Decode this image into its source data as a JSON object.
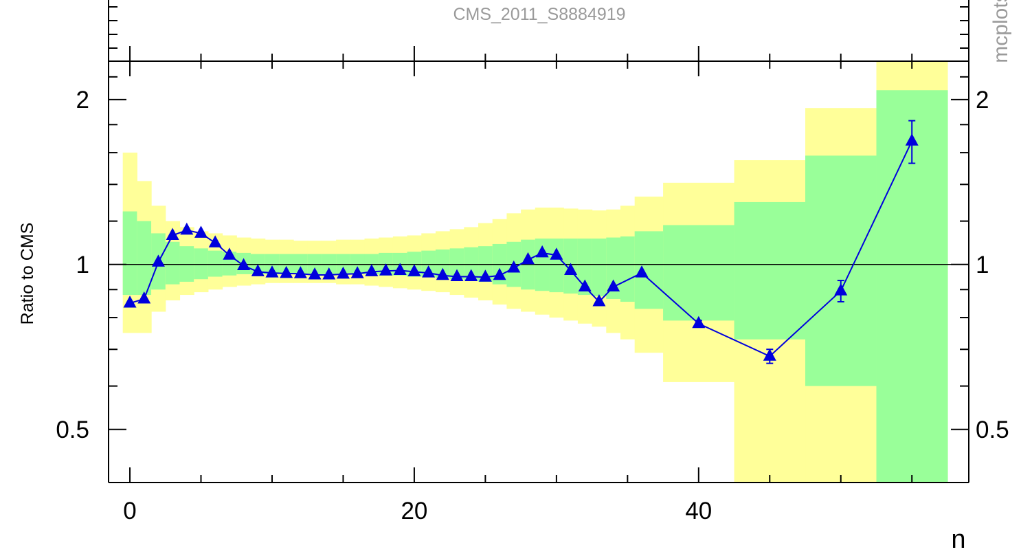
{
  "chart_data": {
    "type": "line",
    "title": "CMS_2011_S8884919",
    "side_label": "mcplots",
    "xlabel": "n",
    "ylabel": "Ratio to CMS",
    "x_ticks": [
      "0",
      "20",
      "40"
    ],
    "y_ticks": [
      "0.5",
      "1",
      "2"
    ],
    "xlim": [
      -1.5,
      59
    ],
    "ylim": [
      0.4,
      2.35
    ],
    "y_scale": "log",
    "reference_line": 1,
    "colors": {
      "band_outer": "#ffff99",
      "band_inner": "#99ff99",
      "series": "#0000dd",
      "axis": "#000000",
      "text_muted": "#9a9a9a"
    },
    "bands": [
      {
        "x0": -0.5,
        "x1": 0.5,
        "outer": [
          0.75,
          1.6
        ],
        "inner": [
          0.88,
          1.25
        ]
      },
      {
        "x0": 0.5,
        "x1": 1.5,
        "outer": [
          0.75,
          1.42
        ],
        "inner": [
          0.88,
          1.2
        ]
      },
      {
        "x0": 1.5,
        "x1": 2.5,
        "outer": [
          0.82,
          1.28
        ],
        "inner": [
          0.9,
          1.14
        ]
      },
      {
        "x0": 2.5,
        "x1": 3.5,
        "outer": [
          0.86,
          1.2
        ],
        "inner": [
          0.92,
          1.1
        ]
      },
      {
        "x0": 3.5,
        "x1": 4.5,
        "outer": [
          0.88,
          1.17
        ],
        "inner": [
          0.93,
          1.08
        ]
      },
      {
        "x0": 4.5,
        "x1": 5.5,
        "outer": [
          0.89,
          1.15
        ],
        "inner": [
          0.94,
          1.07
        ]
      },
      {
        "x0": 5.5,
        "x1": 6.5,
        "outer": [
          0.9,
          1.14
        ],
        "inner": [
          0.95,
          1.06
        ]
      },
      {
        "x0": 6.5,
        "x1": 7.5,
        "outer": [
          0.91,
          1.13
        ],
        "inner": [
          0.955,
          1.055
        ]
      },
      {
        "x0": 7.5,
        "x1": 8.5,
        "outer": [
          0.915,
          1.12
        ],
        "inner": [
          0.96,
          1.05
        ]
      },
      {
        "x0": 8.5,
        "x1": 9.5,
        "outer": [
          0.92,
          1.115
        ],
        "inner": [
          0.96,
          1.045
        ]
      },
      {
        "x0": 9.5,
        "x1": 10.5,
        "outer": [
          0.925,
          1.11
        ],
        "inner": [
          0.96,
          1.045
        ]
      },
      {
        "x0": 10.5,
        "x1": 11.5,
        "outer": [
          0.925,
          1.11
        ],
        "inner": [
          0.96,
          1.045
        ]
      },
      {
        "x0": 11.5,
        "x1": 12.5,
        "outer": [
          0.925,
          1.105
        ],
        "inner": [
          0.96,
          1.045
        ]
      },
      {
        "x0": 12.5,
        "x1": 13.5,
        "outer": [
          0.925,
          1.105
        ],
        "inner": [
          0.96,
          1.045
        ]
      },
      {
        "x0": 13.5,
        "x1": 14.5,
        "outer": [
          0.925,
          1.105
        ],
        "inner": [
          0.96,
          1.045
        ]
      },
      {
        "x0": 14.5,
        "x1": 15.5,
        "outer": [
          0.92,
          1.11
        ],
        "inner": [
          0.96,
          1.045
        ]
      },
      {
        "x0": 15.5,
        "x1": 16.5,
        "outer": [
          0.92,
          1.11
        ],
        "inner": [
          0.96,
          1.045
        ]
      },
      {
        "x0": 16.5,
        "x1": 17.5,
        "outer": [
          0.915,
          1.115
        ],
        "inner": [
          0.96,
          1.045
        ]
      },
      {
        "x0": 17.5,
        "x1": 18.5,
        "outer": [
          0.91,
          1.12
        ],
        "inner": [
          0.955,
          1.05
        ]
      },
      {
        "x0": 18.5,
        "x1": 19.5,
        "outer": [
          0.905,
          1.125
        ],
        "inner": [
          0.955,
          1.05
        ]
      },
      {
        "x0": 19.5,
        "x1": 20.5,
        "outer": [
          0.9,
          1.13
        ],
        "inner": [
          0.95,
          1.055
        ]
      },
      {
        "x0": 20.5,
        "x1": 21.5,
        "outer": [
          0.895,
          1.14
        ],
        "inner": [
          0.95,
          1.06
        ]
      },
      {
        "x0": 21.5,
        "x1": 22.5,
        "outer": [
          0.89,
          1.15
        ],
        "inner": [
          0.945,
          1.065
        ]
      },
      {
        "x0": 22.5,
        "x1": 23.5,
        "outer": [
          0.88,
          1.16
        ],
        "inner": [
          0.94,
          1.07
        ]
      },
      {
        "x0": 23.5,
        "x1": 24.5,
        "outer": [
          0.87,
          1.17
        ],
        "inner": [
          0.935,
          1.075
        ]
      },
      {
        "x0": 24.5,
        "x1": 25.5,
        "outer": [
          0.86,
          1.19
        ],
        "inner": [
          0.93,
          1.08
        ]
      },
      {
        "x0": 25.5,
        "x1": 26.5,
        "outer": [
          0.845,
          1.21
        ],
        "inner": [
          0.92,
          1.09
        ]
      },
      {
        "x0": 26.5,
        "x1": 27.5,
        "outer": [
          0.83,
          1.24
        ],
        "inner": [
          0.91,
          1.1
        ]
      },
      {
        "x0": 27.5,
        "x1": 28.5,
        "outer": [
          0.82,
          1.26
        ],
        "inner": [
          0.9,
          1.11
        ]
      },
      {
        "x0": 28.5,
        "x1": 29.5,
        "outer": [
          0.81,
          1.27
        ],
        "inner": [
          0.895,
          1.115
        ]
      },
      {
        "x0": 29.5,
        "x1": 30.5,
        "outer": [
          0.8,
          1.27
        ],
        "inner": [
          0.89,
          1.115
        ]
      },
      {
        "x0": 30.5,
        "x1": 31.5,
        "outer": [
          0.79,
          1.265
        ],
        "inner": [
          0.885,
          1.115
        ]
      },
      {
        "x0": 31.5,
        "x1": 32.5,
        "outer": [
          0.78,
          1.26
        ],
        "inner": [
          0.88,
          1.115
        ]
      },
      {
        "x0": 32.5,
        "x1": 33.5,
        "outer": [
          0.77,
          1.255
        ],
        "inner": [
          0.875,
          1.115
        ]
      },
      {
        "x0": 33.5,
        "x1": 34.5,
        "outer": [
          0.75,
          1.26
        ],
        "inner": [
          0.865,
          1.12
        ]
      },
      {
        "x0": 34.5,
        "x1": 35.5,
        "outer": [
          0.73,
          1.28
        ],
        "inner": [
          0.855,
          1.125
        ]
      },
      {
        "x0": 35.5,
        "x1": 37.5,
        "outer": [
          0.69,
          1.33
        ],
        "inner": [
          0.83,
          1.15
        ]
      },
      {
        "x0": 37.5,
        "x1": 42.5,
        "outer": [
          0.61,
          1.41
        ],
        "inner": [
          0.79,
          1.18
        ]
      },
      {
        "x0": 42.5,
        "x1": 47.5,
        "outer": [
          0.4,
          1.55
        ],
        "inner": [
          0.73,
          1.3
        ]
      },
      {
        "x0": 47.5,
        "x1": 52.5,
        "outer": [
          0.4,
          1.93
        ],
        "inner": [
          0.6,
          1.58
        ]
      },
      {
        "x0": 52.5,
        "x1": 57.5,
        "outer": [
          0.4,
          2.35
        ],
        "inner": [
          0.4,
          2.08
        ]
      }
    ],
    "series": [
      {
        "x": [
          0,
          1,
          2,
          3,
          4,
          5,
          6,
          7,
          8,
          9,
          10,
          11,
          12,
          13,
          14,
          15,
          16,
          17,
          18,
          19,
          20,
          21,
          22,
          23,
          24,
          25,
          26,
          27,
          28,
          29,
          30,
          31,
          32,
          33,
          34,
          36,
          40,
          45,
          50,
          55
        ],
        "values": [
          0.85,
          0.865,
          1.01,
          1.13,
          1.155,
          1.14,
          1.095,
          1.04,
          0.995,
          0.97,
          0.965,
          0.963,
          0.962,
          0.957,
          0.957,
          0.96,
          0.962,
          0.97,
          0.973,
          0.975,
          0.97,
          0.965,
          0.955,
          0.95,
          0.95,
          0.948,
          0.955,
          0.985,
          1.02,
          1.05,
          1.04,
          0.975,
          0.91,
          0.855,
          0.91,
          0.965,
          0.78,
          0.68,
          0.895,
          1.68
        ],
        "err": [
          0,
          0,
          0,
          0,
          0,
          0,
          0,
          0,
          0,
          0,
          0,
          0,
          0,
          0,
          0,
          0,
          0,
          0,
          0,
          0,
          0,
          0,
          0,
          0,
          0,
          0,
          0,
          0,
          0,
          0,
          0,
          0,
          0,
          0,
          0,
          0,
          0.01,
          0.02,
          0.04,
          0.15
        ]
      }
    ]
  }
}
